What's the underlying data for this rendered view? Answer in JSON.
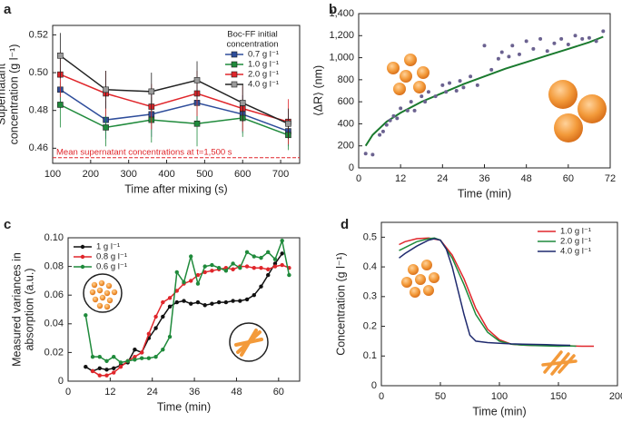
{
  "chart_data": [
    {
      "type": "line",
      "panel_label": "a",
      "marker": "square",
      "xlabel": "Time after mixing (s)",
      "ylabel": [
        "Supernatant",
        "concentration (g l⁻¹)"
      ],
      "legend_title": [
        "Boc-FF initial",
        "concentration"
      ],
      "legend": "top-right",
      "x": [
        120,
        240,
        360,
        480,
        600,
        720
      ],
      "series": [
        {
          "name": "0.7 g l⁻¹",
          "color": "#2e4d9b",
          "values": [
            0.491,
            0.475,
            0.478,
            0.484,
            0.478,
            0.469
          ],
          "errors": [
            0.01,
            0.01,
            0.012,
            0.012,
            0.01,
            0.008
          ]
        },
        {
          "name": "1.0 g l⁻¹",
          "color": "#1f8a3b",
          "values": [
            0.483,
            0.471,
            0.475,
            0.473,
            0.476,
            0.467
          ],
          "errors": [
            0.012,
            0.01,
            0.012,
            0.012,
            0.01,
            0.008
          ]
        },
        {
          "name": "2.0 g l⁻¹",
          "color": "#e0262b",
          "values": [
            0.499,
            0.489,
            0.482,
            0.489,
            0.481,
            0.474
          ],
          "errors": [
            0.012,
            0.012,
            0.012,
            0.012,
            0.012,
            0.012
          ]
        },
        {
          "name": "4.0 g l⁻¹",
          "color": "#222222",
          "marker_color": "#9a9a9a",
          "values": [
            0.509,
            0.491,
            0.49,
            0.496,
            0.484,
            0.473
          ],
          "errors": [
            0.012,
            0.01,
            0.01,
            0.01,
            0.01,
            0.008
          ]
        }
      ],
      "reference": {
        "value": 0.455,
        "label": "Mean supernatant concentrations at t=1,500 s",
        "color": "#e0262b"
      },
      "xlim": [
        100,
        750
      ],
      "xticks": [
        100,
        200,
        300,
        400,
        500,
        600,
        700
      ],
      "ylim": [
        0.452,
        0.525
      ],
      "yticks": [
        0.46,
        0.48,
        {
          "value": 0.5,
          "label": "0.50"
        },
        0.52
      ]
    },
    {
      "type": "scatter",
      "panel_label": "b",
      "xlabel": "Time (min)",
      "ylabel": [
        "⟨ΔR⟩ (nm)"
      ],
      "x": [
        2,
        4,
        6,
        7,
        8,
        9,
        10,
        11,
        12,
        14,
        15,
        16,
        18,
        19,
        20,
        22,
        24,
        25,
        26,
        28,
        29,
        30,
        32,
        34,
        36,
        38,
        40,
        41,
        43,
        44,
        46,
        48,
        50,
        52,
        54,
        56,
        58,
        60,
        62,
        64,
        66,
        68,
        70
      ],
      "values": [
        130,
        120,
        300,
        330,
        390,
        430,
        470,
        450,
        540,
        520,
        600,
        520,
        650,
        600,
        690,
        650,
        750,
        690,
        770,
        700,
        790,
        730,
        830,
        750,
        1110,
        890,
        990,
        1050,
        1010,
        1110,
        1030,
        1150,
        1080,
        1170,
        1060,
        1130,
        1170,
        1120,
        1200,
        1170,
        1180,
        1150,
        1240
      ],
      "color": "#6b6290",
      "fit": {
        "x": [
          2,
          4,
          8,
          12,
          18,
          24,
          30,
          36,
          42,
          48,
          54,
          60,
          66,
          70
        ],
        "values": [
          200,
          300,
          420,
          500,
          600,
          680,
          760,
          830,
          900,
          960,
          1020,
          1080,
          1140,
          1190
        ],
        "color": "#1a7a2e"
      },
      "xlim": [
        0,
        72
      ],
      "xticks": [
        0,
        12,
        24,
        36,
        48,
        60,
        72
      ],
      "ylim": [
        0,
        1400
      ],
      "yticks": [
        0,
        200,
        400,
        600,
        800,
        {
          "value": 1000,
          "label": "1,000"
        },
        {
          "value": 1200,
          "label": "1,200"
        },
        {
          "value": 1400,
          "label": "1,400"
        }
      ]
    },
    {
      "type": "line",
      "panel_label": "c",
      "marker": "circle",
      "xlabel": "Time (min)",
      "ylabel": [
        "Measured variances in",
        "absorption (a.u.)"
      ],
      "legend": "top-left",
      "series": [
        {
          "name": "1 g l⁻¹",
          "color": "#111111",
          "x": [
            5,
            7,
            9,
            11,
            13,
            15,
            17,
            19,
            21,
            23,
            25,
            27,
            29,
            31,
            33,
            35,
            37,
            39,
            41,
            43,
            45,
            47,
            49,
            51,
            53,
            55,
            57,
            59,
            61
          ],
          "values": [
            0.01,
            0.007,
            0.009,
            0.008,
            0.009,
            0.011,
            0.013,
            0.022,
            0.02,
            0.03,
            0.037,
            0.045,
            0.052,
            0.055,
            0.056,
            0.054,
            0.055,
            0.053,
            0.054,
            0.055,
            0.055,
            0.056,
            0.056,
            0.057,
            0.06,
            0.066,
            0.074,
            0.082,
            0.089
          ]
        },
        {
          "name": "0.8 g l⁻¹",
          "color": "#e0262b",
          "x": [
            7,
            9,
            11,
            13,
            15,
            17,
            19,
            21,
            23,
            25,
            27,
            29,
            31,
            33,
            35,
            37,
            39,
            41,
            43,
            45,
            47,
            49,
            51,
            53,
            55,
            57,
            59,
            61,
            63
          ],
          "values": [
            0.007,
            0.004,
            0.004,
            0.006,
            0.01,
            0.014,
            0.017,
            0.02,
            0.033,
            0.045,
            0.055,
            0.058,
            0.063,
            0.068,
            0.07,
            0.074,
            0.076,
            0.077,
            0.078,
            0.079,
            0.078,
            0.08,
            0.08,
            0.079,
            0.079,
            0.078,
            0.08,
            0.081,
            0.079
          ]
        },
        {
          "name": "0.6 g l⁻¹",
          "color": "#1f8a3b",
          "x": [
            5,
            7,
            9,
            11,
            13,
            15,
            17,
            19,
            21,
            23,
            25,
            27,
            29,
            31,
            33,
            35,
            37,
            39,
            41,
            43,
            45,
            47,
            49,
            51,
            53,
            55,
            57,
            59,
            61,
            63
          ],
          "values": [
            0.046,
            0.017,
            0.017,
            0.014,
            0.017,
            0.013,
            0.014,
            0.015,
            0.016,
            0.016,
            0.017,
            0.022,
            0.031,
            0.076,
            0.069,
            0.087,
            0.068,
            0.08,
            0.081,
            0.079,
            0.077,
            0.082,
            0.079,
            0.09,
            0.087,
            0.086,
            0.09,
            0.085,
            0.098,
            0.074
          ]
        }
      ],
      "xlim": [
        0,
        66
      ],
      "xticks": [
        0,
        12,
        24,
        36,
        48,
        60
      ],
      "ylim": [
        0,
        0.1
      ],
      "yticks": [
        0,
        0.02,
        0.04,
        0.06,
        0.08,
        {
          "value": 0.1,
          "label": "0.10"
        }
      ]
    },
    {
      "type": "line",
      "panel_label": "d",
      "xlabel": "Time (min)",
      "ylabel": [
        "Concentration (g l⁻¹)"
      ],
      "legend": "top-right",
      "series": [
        {
          "name": "1.0 g l⁻¹",
          "color": "#e0262b",
          "x": [
            15,
            20,
            30,
            40,
            50,
            60,
            70,
            80,
            90,
            100,
            110,
            120,
            130,
            140,
            150,
            160,
            170,
            180
          ],
          "values": [
            0.475,
            0.485,
            0.495,
            0.497,
            0.49,
            0.44,
            0.36,
            0.26,
            0.19,
            0.155,
            0.14,
            0.137,
            0.135,
            0.135,
            0.134,
            0.134,
            0.133,
            0.133
          ]
        },
        {
          "name": "2.0 g l⁻¹",
          "color": "#1f8a3b",
          "x": [
            15,
            20,
            30,
            40,
            45,
            50,
            60,
            70,
            80,
            90,
            100,
            110,
            120,
            130,
            140,
            150,
            160,
            165
          ],
          "values": [
            0.455,
            0.465,
            0.485,
            0.495,
            0.497,
            0.49,
            0.43,
            0.34,
            0.24,
            0.18,
            0.15,
            0.14,
            0.137,
            0.135,
            0.134,
            0.133,
            0.134,
            0.133
          ]
        },
        {
          "name": "4.0 g l⁻¹",
          "color": "#1f2a6e",
          "x": [
            15,
            20,
            30,
            40,
            45,
            50,
            55,
            60,
            65,
            70,
            75,
            80,
            90,
            100,
            110,
            120,
            130,
            140,
            150,
            160
          ],
          "values": [
            0.43,
            0.445,
            0.47,
            0.49,
            0.495,
            0.49,
            0.46,
            0.4,
            0.32,
            0.24,
            0.17,
            0.15,
            0.145,
            0.143,
            0.141,
            0.14,
            0.139,
            0.138,
            0.137,
            0.136
          ]
        }
      ],
      "xlim": [
        0,
        200
      ],
      "xticks": [
        0,
        50,
        100,
        150,
        200
      ],
      "ylim": [
        0,
        0.55
      ],
      "yticks": [
        0,
        0.1,
        0.2,
        0.3,
        0.4,
        0.5
      ]
    }
  ]
}
